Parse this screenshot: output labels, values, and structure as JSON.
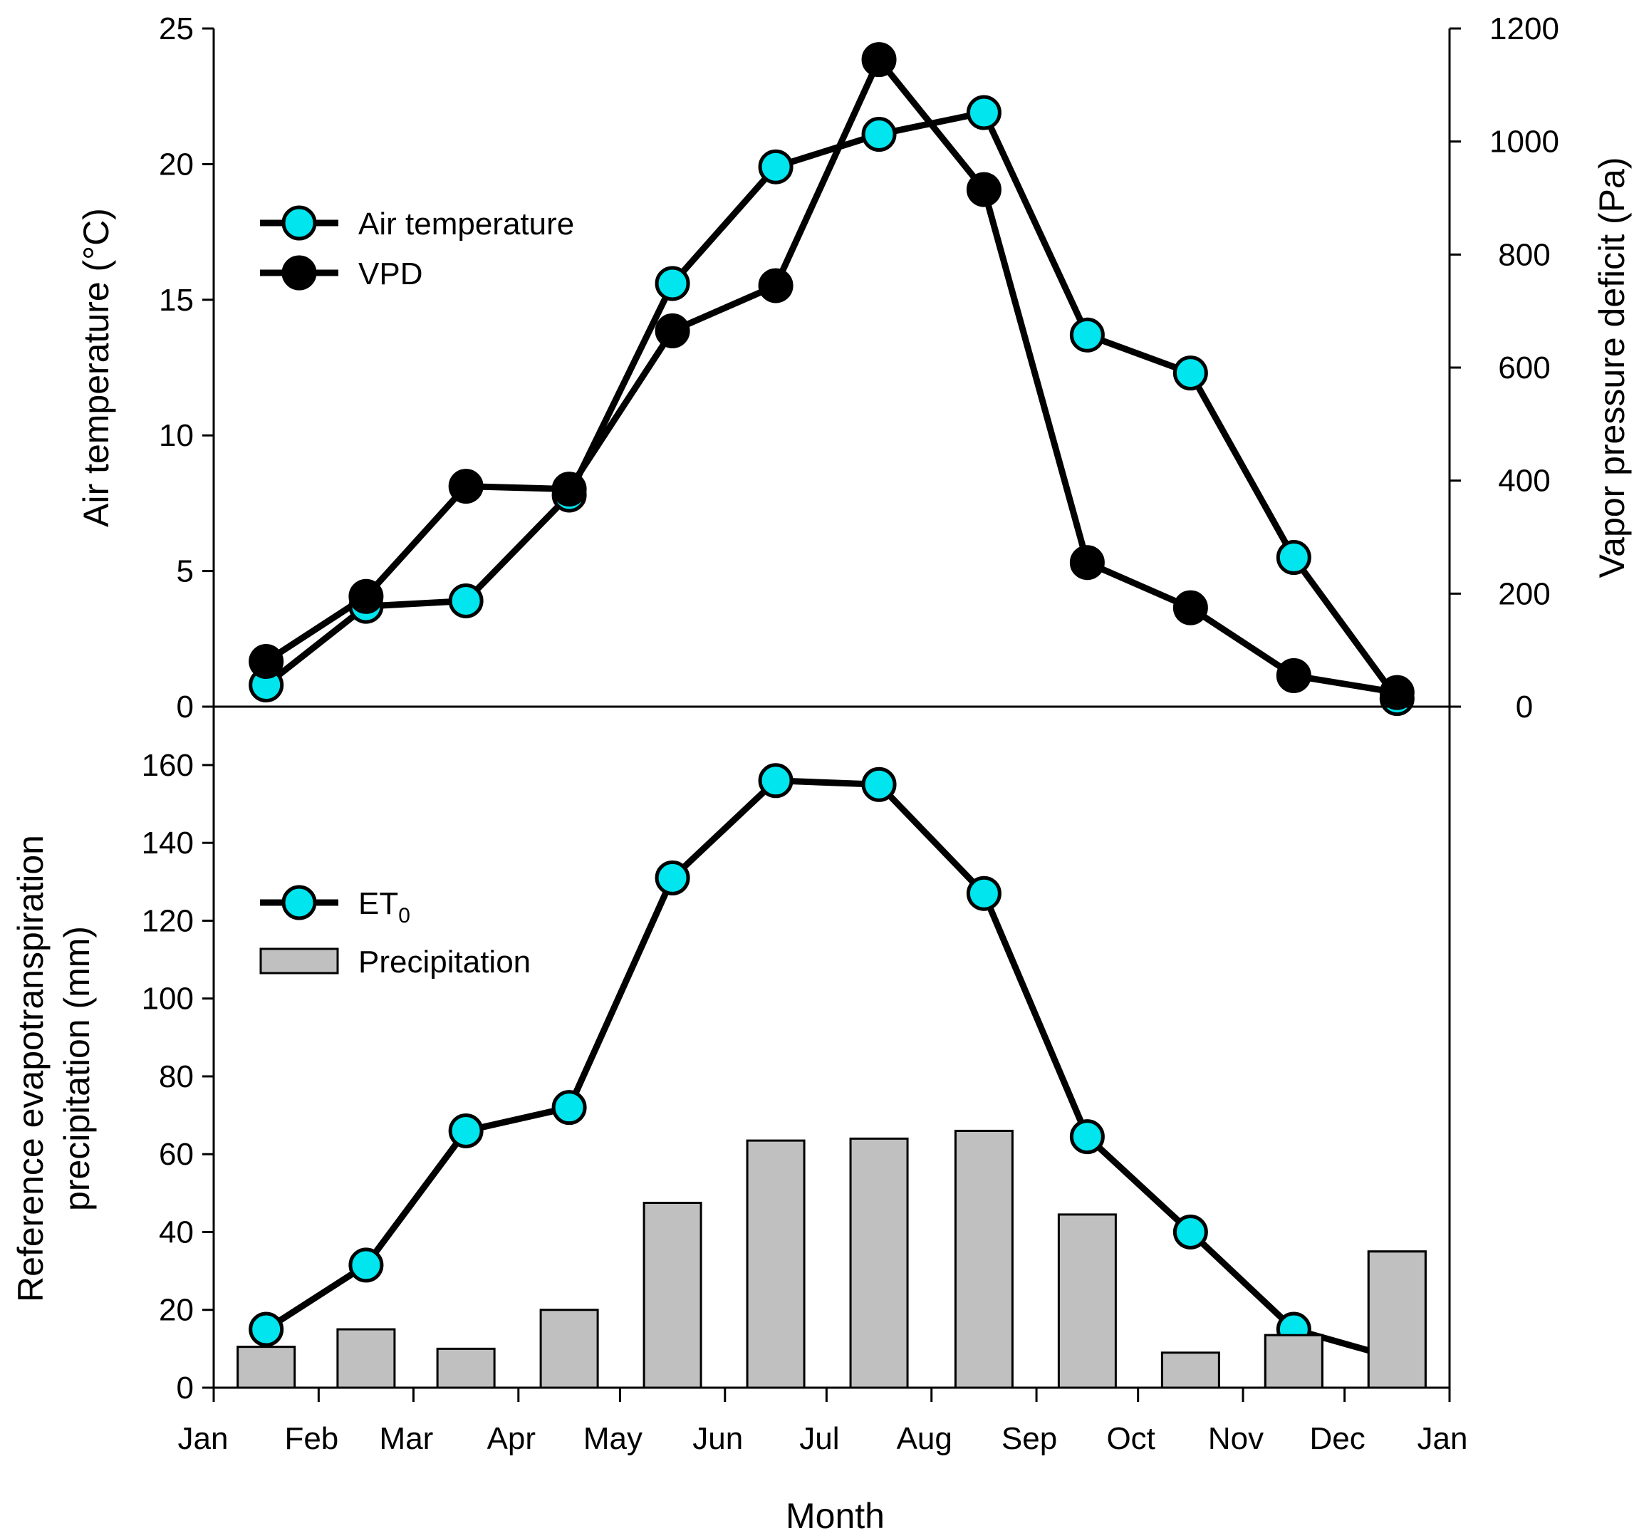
{
  "chart_data": [
    {
      "type": "line",
      "panel": "top",
      "x": [
        0.5,
        1.5,
        2.5,
        3.5,
        4.5,
        5.5,
        6.5,
        7.5,
        8.5,
        9.5,
        10.5,
        11.5
      ],
      "x_unit": "month",
      "series": [
        {
          "name": "Air temperature",
          "axis": "left",
          "marker_color": "#00E5EE",
          "values": [
            0.8,
            3.7,
            3.9,
            7.8,
            15.6,
            19.9,
            21.1,
            21.9,
            13.7,
            12.3,
            5.5,
            0.3
          ]
        },
        {
          "name": "VPD",
          "axis": "right",
          "marker_color": "#000000",
          "values": [
            80,
            195,
            390,
            385,
            665,
            745,
            1145,
            915,
            255,
            175,
            55,
            25
          ]
        }
      ],
      "ylabel": "Air temperature (°C)",
      "ylim": [
        0,
        25
      ],
      "yticks": [
        0,
        5,
        10,
        15,
        20,
        25
      ],
      "y2label": "Vapor pressure deficit (Pa)",
      "y2lim": [
        0,
        1200
      ],
      "y2ticks": [
        0,
        200,
        400,
        600,
        800,
        1000,
        1200
      ],
      "legend": "upper-left",
      "grid": false
    },
    {
      "type": "bar+line",
      "panel": "bottom",
      "x": [
        0.5,
        1.5,
        2.5,
        3.5,
        4.5,
        5.5,
        6.5,
        7.5,
        8.5,
        9.5,
        10.5,
        11.5
      ],
      "x_unit": "month",
      "series": [
        {
          "name": "ET",
          "name_sub": "0",
          "type": "line",
          "marker_color": "#00E5EE",
          "values": [
            15,
            31.5,
            66,
            72,
            131,
            156,
            155,
            127,
            64.5,
            40,
            15,
            7.5
          ]
        },
        {
          "name": "Precipitation",
          "type": "bar",
          "bar_color": "#C0C0C0",
          "values": [
            10.5,
            15,
            10,
            20,
            47.5,
            63.5,
            64,
            66,
            44.5,
            9,
            13.5,
            35
          ]
        }
      ],
      "ylabel_line1": "Reference evapotranspiration",
      "ylabel_line2": "precipitation (mm)",
      "ylim": [
        0,
        175
      ],
      "yticks": [
        0,
        20,
        40,
        60,
        80,
        100,
        120,
        140,
        160
      ],
      "legend": "upper-left",
      "grid": false
    }
  ],
  "x_axis": {
    "title": "Month",
    "ticks": [
      "Jan",
      "Feb",
      "Mar",
      "Apr",
      "May",
      "Jun",
      "Jul",
      "Aug",
      "Sep",
      "Oct",
      "Nov",
      "Dec",
      "Jan"
    ],
    "month_lengths": [
      31,
      28,
      31,
      30,
      31,
      30,
      31,
      31,
      30,
      31,
      30,
      31
    ]
  }
}
